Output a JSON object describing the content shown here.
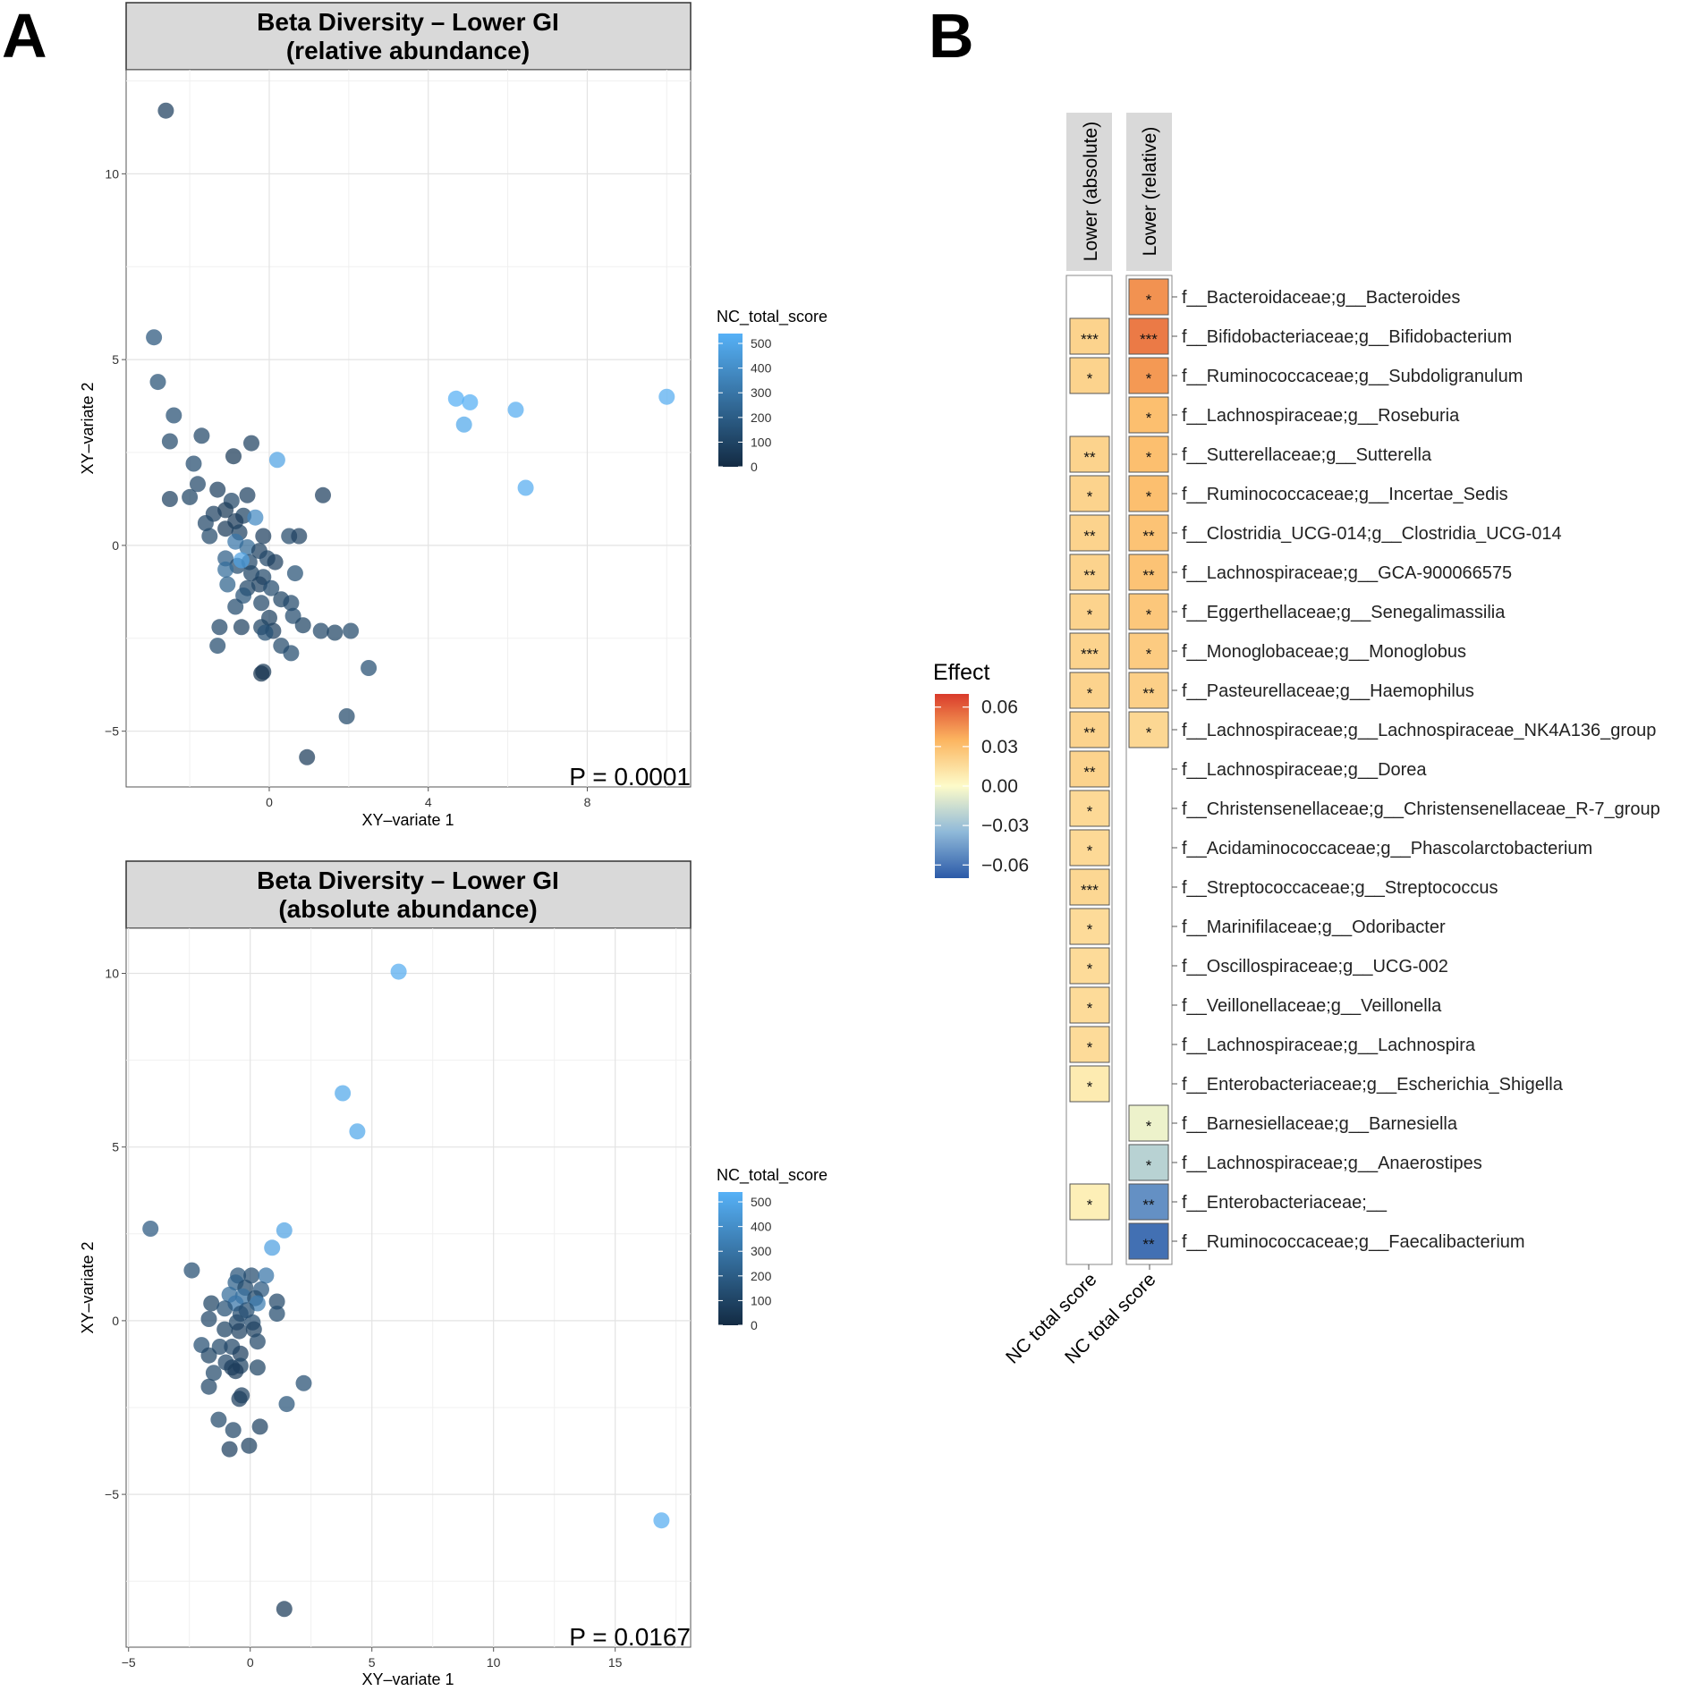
{
  "panel_labels": {
    "a": "A",
    "b": "B"
  },
  "chart_data": [
    {
      "id": "scatter_relative",
      "type": "scatter",
      "title_line1": "Beta Diversity – Lower GI",
      "title_line2": "(relative abundance)",
      "xlabel": "XY–variate 1",
      "ylabel": "XY–variate 2",
      "xlim": [
        -3.6,
        10.6
      ],
      "ylim": [
        -6.5,
        12.8
      ],
      "xticks": [
        0,
        4,
        8
      ],
      "yticks": [
        -5,
        0,
        5,
        10
      ],
      "x_tick_labels": [
        "0",
        "4",
        "8"
      ],
      "y_tick_labels": [
        "−5",
        "0",
        "5",
        "10"
      ],
      "p_value_label": "P = 0.0001",
      "legend": {
        "title": "NC_total_score",
        "ticks": [
          "500",
          "400",
          "300",
          "200",
          "100",
          "0"
        ],
        "range": [
          0,
          540
        ],
        "low_color": "#132B43",
        "high_color": "#56B1F7"
      },
      "points": [
        [
          -2.6,
          11.7,
          80
        ],
        [
          -2.9,
          5.6,
          170
        ],
        [
          -2.8,
          4.4,
          150
        ],
        [
          -2.4,
          3.5,
          140
        ],
        [
          -2.5,
          2.8,
          120
        ],
        [
          -1.7,
          2.95,
          110
        ],
        [
          -0.9,
          2.4,
          60
        ],
        [
          -0.45,
          2.75,
          90
        ],
        [
          0.2,
          2.3,
          480
        ],
        [
          -1.9,
          2.2,
          130
        ],
        [
          -1.8,
          1.65,
          110
        ],
        [
          -2.5,
          1.25,
          90
        ],
        [
          -2.0,
          1.3,
          100
        ],
        [
          -1.3,
          1.5,
          80
        ],
        [
          -0.55,
          1.35,
          90
        ],
        [
          -0.95,
          1.2,
          110
        ],
        [
          -1.1,
          0.95,
          60
        ],
        [
          -1.4,
          0.85,
          90
        ],
        [
          -0.65,
          0.8,
          100
        ],
        [
          -0.35,
          0.75,
          380
        ],
        [
          -0.85,
          0.65,
          70
        ],
        [
          -1.6,
          0.6,
          110
        ],
        [
          -1.1,
          0.45,
          70
        ],
        [
          -1.5,
          0.25,
          120
        ],
        [
          -0.75,
          0.35,
          90
        ],
        [
          -0.15,
          0.25,
          80
        ],
        [
          0.5,
          0.25,
          120
        ],
        [
          0.75,
          0.25,
          90
        ],
        [
          -0.85,
          0.1,
          300
        ],
        [
          -0.55,
          -0.05,
          250
        ],
        [
          -0.25,
          -0.15,
          90
        ],
        [
          -0.05,
          -0.35,
          110
        ],
        [
          -1.1,
          -0.35,
          200
        ],
        [
          -0.8,
          -0.55,
          130
        ],
        [
          -0.5,
          -0.45,
          110
        ],
        [
          0.15,
          -0.45,
          80
        ],
        [
          -1.1,
          -0.65,
          260
        ],
        [
          -0.45,
          -0.75,
          100
        ],
        [
          -0.15,
          -0.85,
          120
        ],
        [
          0.65,
          -0.75,
          150
        ],
        [
          -0.25,
          -1.05,
          90
        ],
        [
          -0.55,
          -1.15,
          110
        ],
        [
          0.05,
          -1.15,
          130
        ],
        [
          -1.05,
          -1.05,
          220
        ],
        [
          -0.65,
          -1.35,
          160
        ],
        [
          -0.85,
          -1.65,
          130
        ],
        [
          -0.2,
          -1.55,
          110
        ],
        [
          0.3,
          -1.45,
          100
        ],
        [
          0.55,
          -1.55,
          120
        ],
        [
          0.6,
          -1.9,
          130
        ],
        [
          1.35,
          1.35,
          80
        ],
        [
          0.0,
          -1.95,
          90
        ],
        [
          0.1,
          -2.3,
          80
        ],
        [
          -0.2,
          -2.2,
          100
        ],
        [
          -0.7,
          -2.2,
          90
        ],
        [
          -1.25,
          -2.2,
          110
        ],
        [
          -0.1,
          -2.35,
          150
        ],
        [
          0.85,
          -2.15,
          100
        ],
        [
          1.3,
          -2.3,
          110
        ],
        [
          1.65,
          -2.35,
          100
        ],
        [
          2.05,
          -2.3,
          120
        ],
        [
          -1.3,
          -2.7,
          130
        ],
        [
          0.3,
          -2.7,
          120
        ],
        [
          0.55,
          -2.9,
          130
        ],
        [
          -0.15,
          -3.4,
          60
        ],
        [
          -0.2,
          -3.45,
          40
        ],
        [
          2.5,
          -3.3,
          140
        ],
        [
          1.95,
          -4.6,
          120
        ],
        [
          0.95,
          -5.7,
          70
        ],
        [
          -0.7,
          -0.4,
          480
        ],
        [
          4.7,
          3.95,
          530
        ],
        [
          5.05,
          3.85,
          530
        ],
        [
          4.9,
          3.25,
          500
        ],
        [
          6.2,
          3.65,
          520
        ],
        [
          6.45,
          1.55,
          520
        ],
        [
          10.0,
          4.0,
          520
        ]
      ]
    },
    {
      "id": "scatter_absolute",
      "type": "scatter",
      "title_line1": "Beta Diversity – Lower GI",
      "title_line2": "(absolute abundance)",
      "xlabel": "XY–variate 1",
      "ylabel": "XY–variate 2",
      "xlim": [
        -5.1,
        18.1
      ],
      "ylim": [
        -9.4,
        11.3
      ],
      "xticks": [
        -5,
        0,
        5,
        10,
        15
      ],
      "yticks": [
        -5,
        0,
        5,
        10
      ],
      "x_tick_labels": [
        "−5",
        "0",
        "5",
        "10",
        "15"
      ],
      "y_tick_labels": [
        "−5",
        "0",
        "5",
        "10"
      ],
      "p_value_label": "P = 0.0167",
      "legend": {
        "title": "NC_total_score",
        "ticks": [
          "500",
          "400",
          "300",
          "200",
          "100",
          "0"
        ],
        "range": [
          0,
          540
        ],
        "low_color": "#132B43",
        "high_color": "#56B1F7"
      },
      "points": [
        [
          6.1,
          10.05,
          520
        ],
        [
          3.8,
          6.55,
          500
        ],
        [
          4.4,
          5.45,
          500
        ],
        [
          -4.1,
          2.65,
          180
        ],
        [
          1.4,
          2.6,
          480
        ],
        [
          0.9,
          2.1,
          470
        ],
        [
          -2.4,
          1.45,
          140
        ],
        [
          -0.5,
          1.3,
          160
        ],
        [
          0.05,
          1.3,
          130
        ],
        [
          0.65,
          1.3,
          300
        ],
        [
          -0.6,
          1.1,
          210
        ],
        [
          -0.2,
          0.95,
          120
        ],
        [
          0.45,
          0.9,
          180
        ],
        [
          -0.85,
          0.75,
          260
        ],
        [
          -0.3,
          0.7,
          280
        ],
        [
          0.2,
          0.65,
          120
        ],
        [
          -1.6,
          0.5,
          100
        ],
        [
          -0.6,
          0.5,
          300
        ],
        [
          0.3,
          0.5,
          330
        ],
        [
          1.1,
          0.55,
          110
        ],
        [
          -1.05,
          0.35,
          150
        ],
        [
          -0.15,
          0.3,
          140
        ],
        [
          -0.4,
          0.2,
          140
        ],
        [
          1.1,
          0.2,
          130
        ],
        [
          -1.7,
          0.05,
          110
        ],
        [
          -0.55,
          -0.05,
          120
        ],
        [
          0.1,
          -0.05,
          130
        ],
        [
          -1.05,
          -0.25,
          100
        ],
        [
          -0.45,
          -0.3,
          90
        ],
        [
          0.15,
          -0.25,
          90
        ],
        [
          -2.0,
          -0.7,
          140
        ],
        [
          -1.25,
          -0.75,
          120
        ],
        [
          -0.75,
          -0.75,
          110
        ],
        [
          0.3,
          -0.6,
          110
        ],
        [
          -1.7,
          -1.0,
          100
        ],
        [
          -0.4,
          -0.95,
          80
        ],
        [
          -1.0,
          -1.2,
          110
        ],
        [
          -0.4,
          -1.3,
          100
        ],
        [
          0.3,
          -1.35,
          100
        ],
        [
          -0.75,
          -1.35,
          80
        ],
        [
          -1.5,
          -1.5,
          120
        ],
        [
          -0.6,
          -1.45,
          70
        ],
        [
          -1.7,
          -1.9,
          110
        ],
        [
          2.2,
          -1.8,
          140
        ],
        [
          -0.35,
          -2.15,
          90
        ],
        [
          -0.45,
          -2.25,
          80
        ],
        [
          1.5,
          -2.4,
          160
        ],
        [
          -1.3,
          -2.85,
          120
        ],
        [
          -0.7,
          -3.15,
          110
        ],
        [
          0.4,
          -3.05,
          90
        ],
        [
          -0.85,
          -3.7,
          80
        ],
        [
          -0.05,
          -3.6,
          90
        ],
        [
          1.4,
          -8.3,
          70
        ],
        [
          16.9,
          -5.75,
          520
        ]
      ]
    },
    {
      "id": "heatmap_effect",
      "type": "heatmap",
      "legend_title": "Effect",
      "color_range": [
        -0.07,
        0.07
      ],
      "legend_ticks": [
        0.06,
        0.03,
        0.0,
        -0.03,
        -0.06
      ],
      "legend_tick_labels": [
        "0.06",
        "0.03",
        "0.00",
        "−0.03",
        "−0.06"
      ],
      "columns": [
        {
          "facet": "Lower (absolute)",
          "label": "NC total score"
        },
        {
          "facet": "Lower (relative)",
          "label": "NC total score"
        }
      ],
      "rows": [
        {
          "taxon": "f__Bacteroidaceae;g__Bacteroides",
          "absolute": null,
          "absolute_sig": "",
          "relative": 0.045,
          "relative_sig": "*"
        },
        {
          "taxon": "f__Bifidobacteriaceae;g__Bifidobacterium",
          "absolute": 0.02,
          "absolute_sig": "***",
          "relative": 0.052,
          "relative_sig": "***"
        },
        {
          "taxon": "f__Ruminococcaceae;g__Subdoligranulum",
          "absolute": 0.02,
          "absolute_sig": "*",
          "relative": 0.043,
          "relative_sig": "*"
        },
        {
          "taxon": "f__Lachnospiraceae;g__Roseburia",
          "absolute": null,
          "absolute_sig": "",
          "relative": 0.03,
          "relative_sig": "*"
        },
        {
          "taxon": "f__Sutterellaceae;g__Sutterella",
          "absolute": 0.02,
          "absolute_sig": "**",
          "relative": 0.03,
          "relative_sig": "*"
        },
        {
          "taxon": "f__Ruminococcaceae;g__Incertae_Sedis",
          "absolute": 0.02,
          "absolute_sig": "*",
          "relative": 0.03,
          "relative_sig": "*"
        },
        {
          "taxon": "f__Clostridia_UCG-014;g__Clostridia_UCG-014",
          "absolute": 0.02,
          "absolute_sig": "**",
          "relative": 0.028,
          "relative_sig": "**"
        },
        {
          "taxon": "f__Lachnospiraceae;g__GCA-900066575",
          "absolute": 0.02,
          "absolute_sig": "**",
          "relative": 0.028,
          "relative_sig": "**"
        },
        {
          "taxon": "f__Eggerthellaceae;g__Senegalimassilia",
          "absolute": 0.02,
          "absolute_sig": "*",
          "relative": 0.026,
          "relative_sig": "*"
        },
        {
          "taxon": "f__Monoglobaceae;g__Monoglobus",
          "absolute": 0.02,
          "absolute_sig": "***",
          "relative": 0.024,
          "relative_sig": "*"
        },
        {
          "taxon": "f__Pasteurellaceae;g__Haemophilus",
          "absolute": 0.02,
          "absolute_sig": "*",
          "relative": 0.022,
          "relative_sig": "**"
        },
        {
          "taxon": "f__Lachnospiraceae;g__Lachnospiraceae_NK4A136_group",
          "absolute": 0.02,
          "absolute_sig": "**",
          "relative": 0.018,
          "relative_sig": "*"
        },
        {
          "taxon": "f__Lachnospiraceae;g__Dorea",
          "absolute": 0.02,
          "absolute_sig": "**",
          "relative": null,
          "relative_sig": ""
        },
        {
          "taxon": "f__Christensenellaceae;g__Christensenellaceae_R-7_group",
          "absolute": 0.017,
          "absolute_sig": "*",
          "relative": null,
          "relative_sig": ""
        },
        {
          "taxon": "f__Acidaminococcaceae;g__Phascolarctobacterium",
          "absolute": 0.017,
          "absolute_sig": "*",
          "relative": null,
          "relative_sig": ""
        },
        {
          "taxon": "f__Streptococcaceae;g__Streptococcus",
          "absolute": 0.018,
          "absolute_sig": "***",
          "relative": null,
          "relative_sig": ""
        },
        {
          "taxon": "f__Marinifilaceae;g__Odoribacter",
          "absolute": 0.016,
          "absolute_sig": "*",
          "relative": null,
          "relative_sig": ""
        },
        {
          "taxon": "f__Oscillospiraceae;g__UCG-002",
          "absolute": 0.016,
          "absolute_sig": "*",
          "relative": null,
          "relative_sig": ""
        },
        {
          "taxon": "f__Veillonellaceae;g__Veillonella",
          "absolute": 0.016,
          "absolute_sig": "*",
          "relative": null,
          "relative_sig": ""
        },
        {
          "taxon": "f__Lachnospiraceae;g__Lachnospira",
          "absolute": 0.016,
          "absolute_sig": "*",
          "relative": null,
          "relative_sig": ""
        },
        {
          "taxon": "f__Enterobacteriaceae;g__Escherichia_Shigella",
          "absolute": 0.008,
          "absolute_sig": "*",
          "relative": null,
          "relative_sig": ""
        },
        {
          "taxon": "f__Barnesiellaceae;g__Barnesiella",
          "absolute": null,
          "absolute_sig": "",
          "relative": -0.005,
          "relative_sig": "*"
        },
        {
          "taxon": "f__Lachnospiraceae;g__Anaerostipes",
          "absolute": null,
          "absolute_sig": "",
          "relative": -0.022,
          "relative_sig": "*"
        },
        {
          "taxon": "f__Enterobacteriaceae;__",
          "absolute": 0.006,
          "absolute_sig": "*",
          "relative": -0.05,
          "relative_sig": "**"
        },
        {
          "taxon": "f__Ruminococcaceae;g__Faecalibacterium",
          "absolute": null,
          "absolute_sig": "",
          "relative": -0.062,
          "relative_sig": "**"
        }
      ]
    }
  ]
}
